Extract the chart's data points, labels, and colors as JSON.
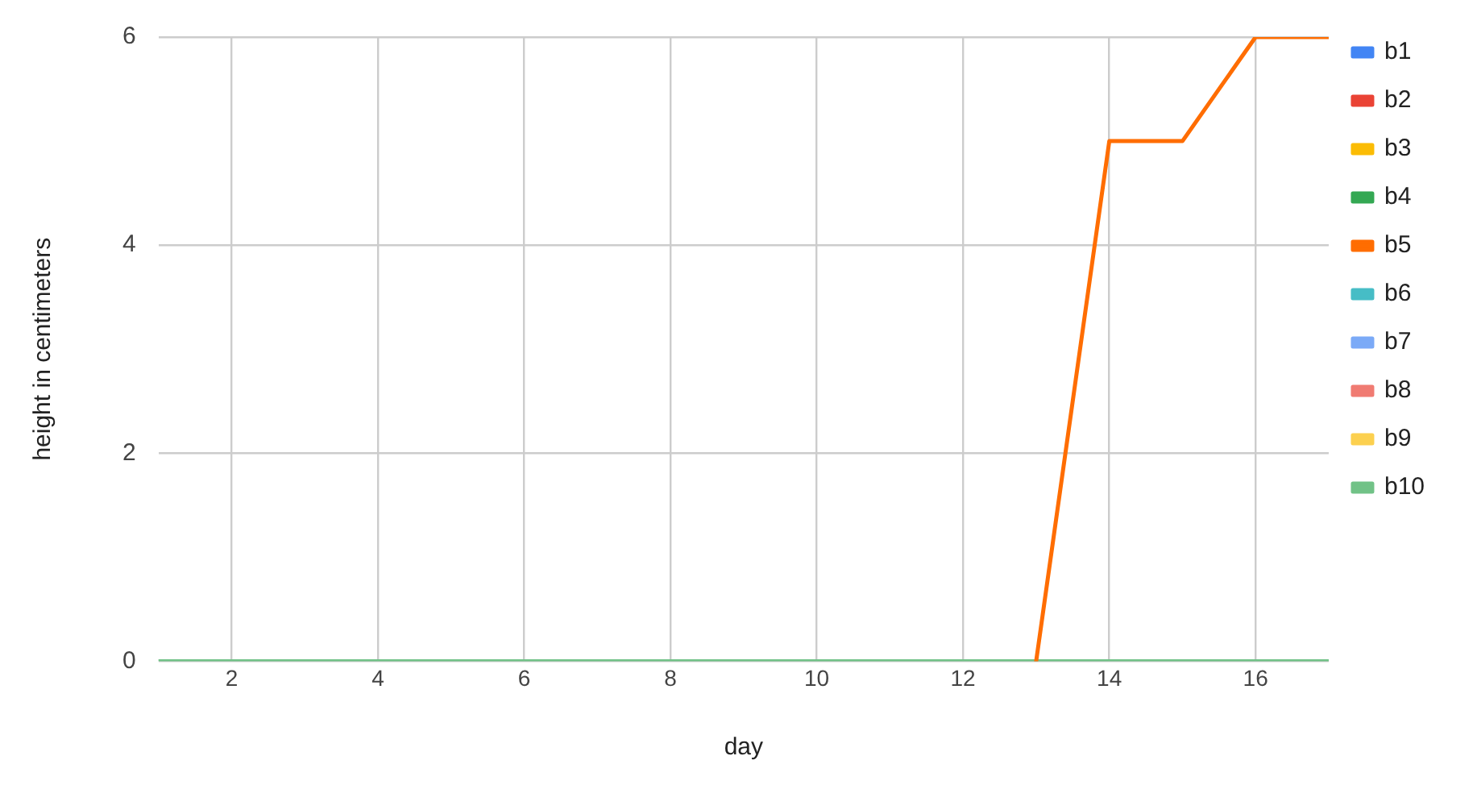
{
  "chart_data": {
    "type": "line",
    "xlabel": "day",
    "ylabel": "height in centimeters",
    "x": [
      1,
      2,
      3,
      4,
      5,
      6,
      7,
      8,
      9,
      10,
      11,
      12,
      13,
      14,
      15,
      16,
      17
    ],
    "xlim": [
      1,
      17
    ],
    "xticks": [
      2,
      4,
      6,
      8,
      10,
      12,
      14,
      16
    ],
    "ylim": [
      0,
      6
    ],
    "yticks": [
      0,
      2,
      4,
      6
    ],
    "grid": true,
    "legend": "right",
    "marker": "none",
    "line_style": "solid",
    "series": [
      {
        "name": "b1",
        "color": "#4285f4",
        "values": [
          null,
          null,
          null,
          null,
          null,
          null,
          null,
          null,
          null,
          null,
          null,
          null,
          null,
          null,
          null,
          null,
          null
        ]
      },
      {
        "name": "b2",
        "color": "#ea4335",
        "values": [
          null,
          null,
          null,
          null,
          null,
          null,
          null,
          null,
          null,
          null,
          null,
          null,
          null,
          null,
          null,
          null,
          null
        ]
      },
      {
        "name": "b3",
        "color": "#fbbc04",
        "values": [
          null,
          null,
          null,
          null,
          null,
          null,
          null,
          null,
          null,
          null,
          null,
          null,
          null,
          null,
          null,
          null,
          null
        ]
      },
      {
        "name": "b4",
        "color": "#34a853",
        "values": [
          null,
          null,
          null,
          null,
          null,
          null,
          null,
          null,
          null,
          null,
          null,
          null,
          null,
          null,
          null,
          null,
          null
        ]
      },
      {
        "name": "b5",
        "color": "#ff6d01",
        "values": [
          null,
          null,
          null,
          null,
          null,
          null,
          null,
          null,
          null,
          null,
          null,
          null,
          0,
          5,
          5,
          6,
          6
        ]
      },
      {
        "name": "b6",
        "color": "#46bdc6",
        "values": [
          null,
          null,
          null,
          null,
          null,
          null,
          null,
          null,
          null,
          null,
          null,
          null,
          null,
          null,
          null,
          null,
          null
        ]
      },
      {
        "name": "b7",
        "color": "#7baaf7",
        "values": [
          null,
          null,
          null,
          null,
          null,
          null,
          null,
          null,
          null,
          null,
          null,
          null,
          null,
          null,
          null,
          null,
          null
        ]
      },
      {
        "name": "b8",
        "color": "#f07b72",
        "values": [
          null,
          null,
          null,
          null,
          null,
          null,
          null,
          null,
          null,
          null,
          null,
          null,
          null,
          null,
          null,
          null,
          null
        ]
      },
      {
        "name": "b9",
        "color": "#fcd04f",
        "values": [
          null,
          null,
          null,
          null,
          null,
          null,
          null,
          null,
          null,
          null,
          null,
          null,
          null,
          null,
          null,
          null,
          null
        ]
      },
      {
        "name": "b10",
        "color": "#71c287",
        "values": [
          0,
          0,
          0,
          0,
          0,
          0,
          0,
          0,
          0,
          0,
          0,
          0,
          0,
          0,
          0,
          0,
          0
        ]
      }
    ]
  }
}
